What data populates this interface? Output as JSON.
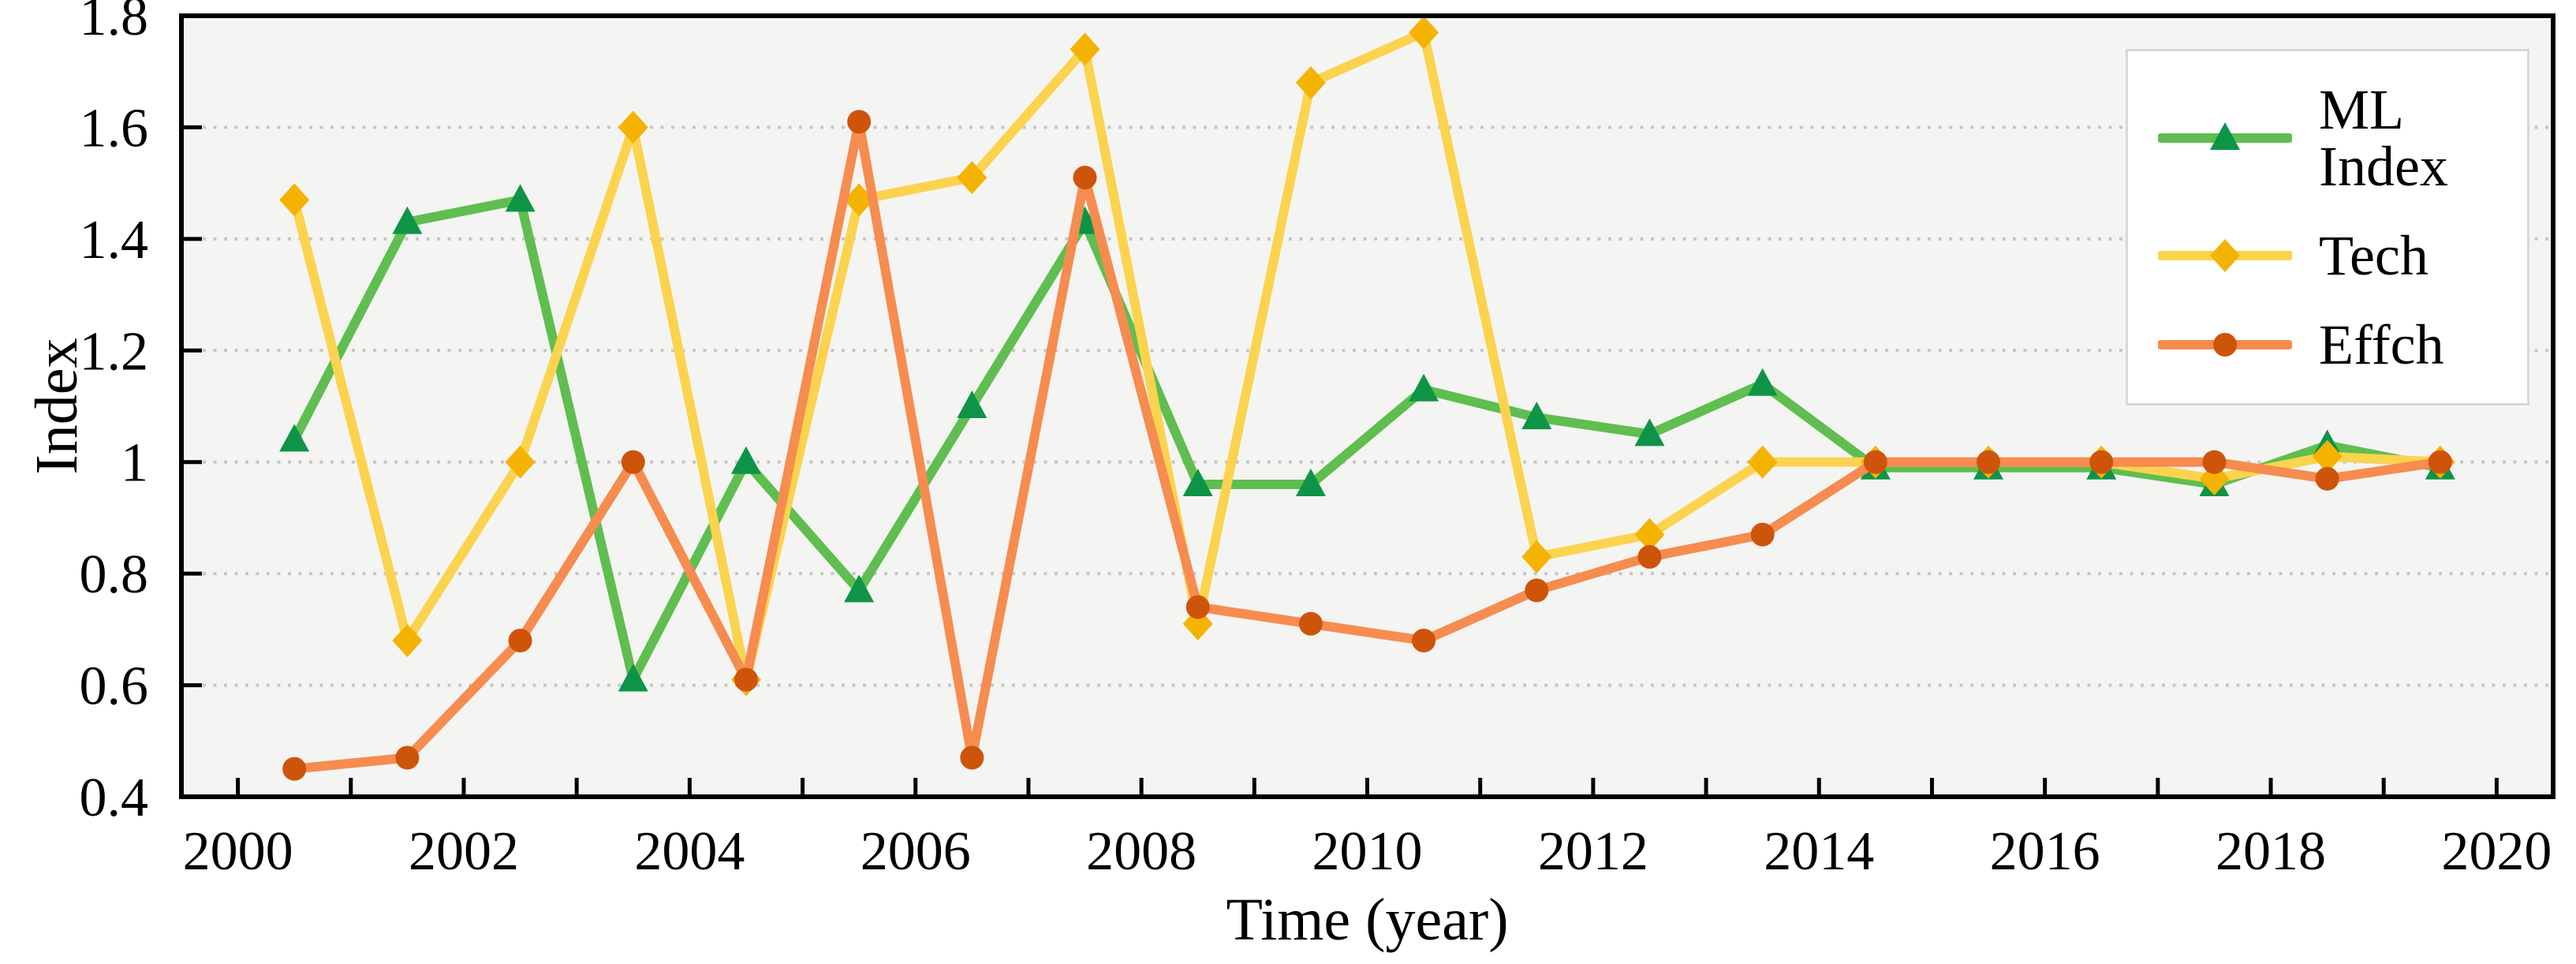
{
  "chart_data": {
    "type": "line",
    "title": "",
    "xlabel": "Time (year)",
    "ylabel": "Index",
    "xlim": [
      1999.5,
      2020.5
    ],
    "ylim": [
      0.4,
      1.8
    ],
    "grid": "horizontal-dotted",
    "legend_position": "top-right",
    "plot_bg_color": "#f4f4f3",
    "grid_color": "#c6c6c6",
    "axis_color": "#000000",
    "legend_border_color": "#d8d8d8",
    "x_axis": {
      "minor_tick_values": [
        2000,
        2001,
        2002,
        2003,
        2004,
        2005,
        2006,
        2007,
        2008,
        2009,
        2010,
        2011,
        2012,
        2013,
        2014,
        2015,
        2016,
        2017,
        2018,
        2019,
        2020
      ],
      "major_ticks": [
        {
          "value": 2000,
          "label": "2000"
        },
        {
          "value": 2002,
          "label": "2002"
        },
        {
          "value": 2004,
          "label": "2004"
        },
        {
          "value": 2006,
          "label": "2006"
        },
        {
          "value": 2008,
          "label": "2008"
        },
        {
          "value": 2010,
          "label": "2010"
        },
        {
          "value": 2012,
          "label": "2012"
        },
        {
          "value": 2014,
          "label": "2014"
        },
        {
          "value": 2016,
          "label": "2016"
        },
        {
          "value": 2018,
          "label": "2018"
        },
        {
          "value": 2020,
          "label": "2020"
        }
      ]
    },
    "y_axis": {
      "tick_values": [
        0.4,
        0.6,
        0.8,
        1.0,
        1.2,
        1.4,
        1.6,
        1.8
      ],
      "tick_labels": [
        "0.4",
        "0.6",
        "0.8",
        "1",
        "1.2",
        "1.4",
        "1.6",
        "1.8"
      ],
      "grid_values": [
        0.6,
        0.8,
        1.0,
        1.2,
        1.4,
        1.6
      ]
    },
    "x": [
      2000.5,
      2001.5,
      2002.5,
      2003.5,
      2004.5,
      2005.5,
      2006.5,
      2007.5,
      2008.5,
      2009.5,
      2010.5,
      2011.5,
      2012.5,
      2013.5,
      2014.5,
      2015.5,
      2016.5,
      2017.5,
      2018.5,
      2019.5
    ],
    "series": [
      {
        "name": "ML Index",
        "marker": "triangle",
        "line_color": "#5fbe4f",
        "marker_color": "#0e9447",
        "values": [
          1.04,
          1.43,
          1.47,
          0.61,
          1.0,
          0.77,
          1.1,
          1.43,
          0.96,
          0.96,
          1.13,
          1.08,
          1.05,
          1.14,
          0.99,
          0.99,
          0.99,
          0.96,
          1.03,
          0.99
        ]
      },
      {
        "name": "Tech",
        "marker": "diamond",
        "line_color": "#fbd34e",
        "marker_color": "#f5b301",
        "values": [
          1.47,
          0.68,
          1.0,
          1.6,
          0.61,
          1.47,
          1.51,
          1.74,
          0.71,
          1.68,
          1.77,
          0.83,
          0.87,
          1.0,
          1.0,
          1.0,
          1.0,
          0.97,
          1.01,
          1.0
        ]
      },
      {
        "name": "Effch",
        "marker": "circle",
        "line_color": "#f68c4f",
        "marker_color": "#ce5409",
        "values": [
          0.45,
          0.47,
          0.68,
          1.0,
          0.61,
          1.61,
          0.47,
          1.51,
          0.74,
          0.71,
          0.68,
          0.77,
          0.83,
          0.87,
          1.0,
          1.0,
          1.0,
          1.0,
          0.97,
          1.0
        ]
      }
    ]
  }
}
